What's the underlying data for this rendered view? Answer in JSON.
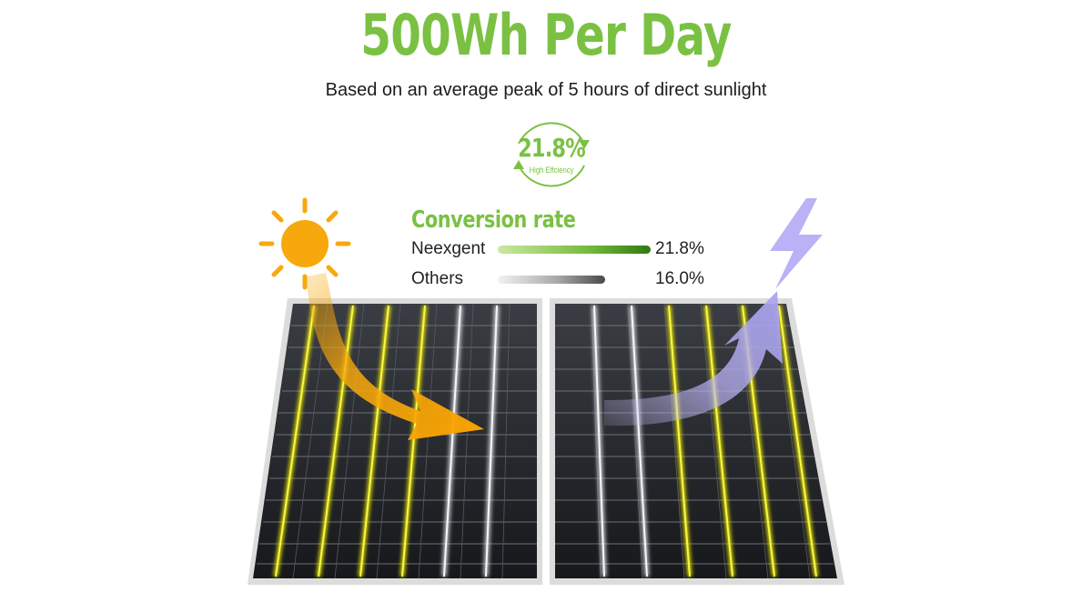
{
  "headline": "500Wh Per Day",
  "subheadline": "Based on an average peak of 5 hours of direct sunlight",
  "badge": {
    "value": "21.8%",
    "caption": "High Effciency"
  },
  "conversion": {
    "title": "Conversion rate",
    "rows": [
      {
        "label": "Neexgent",
        "value": "21.8%",
        "fill_percent": 21.8,
        "style": "green"
      },
      {
        "label": "Others",
        "value": "16.0%",
        "fill_percent": 16.0,
        "style": "gray"
      }
    ]
  },
  "colors": {
    "accent_green": "#7ac143",
    "sun_orange": "#f7a80c",
    "arrow_lavender": "#b8b2f5",
    "panel_dark": "#222428",
    "busbar_yellow": "#e8e600"
  },
  "icons": [
    "sun-icon",
    "lightning-bolt-icon",
    "sunlight-arrow",
    "energy-arrow",
    "cycle-arrows-icon"
  ]
}
